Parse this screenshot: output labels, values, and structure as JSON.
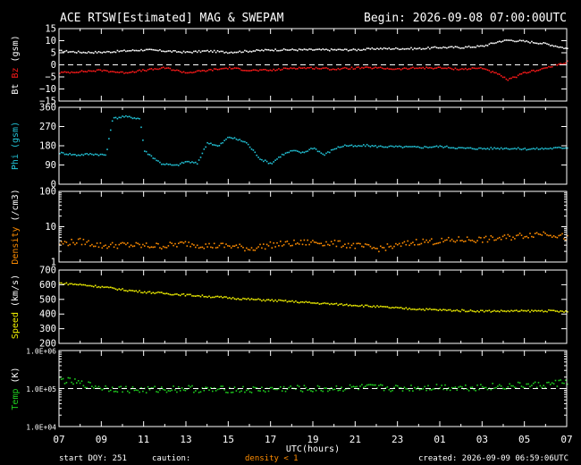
{
  "header": {
    "title": "ACE RTSW[Estimated] MAG & SWEPAM",
    "begin": "Begin: 2026-09-08 07:00:00UTC"
  },
  "footer": {
    "start_doy": "start DOY: 251",
    "caution": "caution:",
    "density_note": "density < 1",
    "created": "created: 2026-09-09 06:59:06UTC"
  },
  "colors": {
    "bt": "#ffffff",
    "bz": "#ff1a1a",
    "phi": "#22c4d8",
    "density": "#ff8c00",
    "speed": "#f0f000",
    "temp": "#1ecf1e",
    "frame": "#ffffff",
    "background": "#000000"
  },
  "chart_data": {
    "type": "scatter",
    "x": {
      "xlabel": "UTC(hours)",
      "tick_labels": [
        "07",
        "09",
        "11",
        "13",
        "15",
        "17",
        "19",
        "21",
        "23",
        "01",
        "03",
        "05",
        "07"
      ],
      "range_hours": [
        0,
        24
      ]
    },
    "panels": [
      {
        "id": "mag",
        "ylabel": [
          {
            "text": "Bt",
            "color": "#ffffff"
          },
          {
            "text": " Bz",
            "color": "#ff1a1a"
          },
          {
            "text": " (gsm)",
            "color": "#ffffff"
          }
        ],
        "ylim": [
          -15,
          15
        ],
        "scale": "linear",
        "ticks": [
          15,
          10,
          5,
          0,
          -5,
          -10,
          -15
        ],
        "tick_labels": [
          "15",
          "10",
          "5",
          "0",
          "−5",
          "−10",
          "−15"
        ],
        "dashed_line": 0,
        "series": [
          {
            "name": "Bt",
            "color": "#ffffff",
            "x": [
              0,
              1,
              2,
              3,
              4,
              5,
              6,
              7,
              8,
              9,
              10,
              11,
              12,
              13,
              14,
              15,
              16,
              17,
              18,
              19,
              20,
              20.8,
              21.2,
              22,
              23,
              24
            ],
            "y": [
              6,
              5.5,
              5.5,
              6,
              6.5,
              6,
              5.5,
              6,
              5.5,
              6,
              6.5,
              6.5,
              6.5,
              6.5,
              6.5,
              7,
              7,
              7,
              7.5,
              7.5,
              8,
              10,
              10.5,
              10,
              9,
              7
            ]
          },
          {
            "name": "Bz",
            "color": "#ff1a1a",
            "x": [
              0,
              1,
              2,
              3,
              4,
              5,
              6,
              7,
              8,
              9,
              10,
              11,
              12,
              13,
              14,
              15,
              16,
              17,
              18,
              19,
              20,
              20.8,
              21.2,
              22,
              23,
              24
            ],
            "y": [
              -3,
              -2.5,
              -2,
              -3,
              -2,
              -1,
              -3,
              -2,
              -1,
              -2,
              -2,
              -1,
              -1,
              -1.5,
              -1,
              -1,
              -1.5,
              -1,
              -1,
              -1.5,
              -1,
              -4,
              -6,
              -3,
              -1,
              1.5
            ]
          }
        ]
      },
      {
        "id": "phi",
        "ylabel": [
          {
            "text": "Phi (gsm)",
            "color": "#22c4d8"
          }
        ],
        "ylim": [
          0,
          360
        ],
        "scale": "linear",
        "ticks": [
          360,
          270,
          180,
          90,
          0
        ],
        "tick_labels": [
          "360",
          "270",
          "180",
          "90",
          "0"
        ],
        "series": [
          {
            "name": "Phi",
            "color": "#22c4d8",
            "x": [
              0,
              0.8,
              1.5,
              2.2,
              2.5,
              3,
              3.5,
              3.8,
              4,
              4.8,
              5.5,
              6,
              6.5,
              7,
              7.5,
              8,
              8.8,
              9.5,
              10,
              10.5,
              11,
              11.5,
              12,
              12.5,
              13,
              13.5,
              14,
              14.5,
              15,
              16,
              17,
              18,
              19,
              20,
              21,
              22,
              23,
              24
            ],
            "y": [
              150,
              140,
              145,
              140,
              310,
              320,
              315,
              310,
              160,
              100,
              90,
              110,
              100,
              200,
              180,
              225,
              200,
              120,
              100,
              140,
              160,
              150,
              175,
              140,
              170,
              185,
              180,
              185,
              180,
              178,
              176,
              180,
              172,
              170,
              172,
              168,
              170,
              175
            ]
          }
        ]
      },
      {
        "id": "density",
        "ylabel": [
          {
            "text": "Density",
            "color": "#ff8c00"
          },
          {
            "text": " (/cm3)",
            "color": "#ffffff"
          }
        ],
        "ylim": [
          1,
          100
        ],
        "scale": "log",
        "ticks": [
          100,
          10,
          1
        ],
        "tick_labels": [
          "100",
          "10",
          "1"
        ],
        "series": [
          {
            "name": "Density",
            "color": "#ff8c00",
            "x": [
              0,
              1,
              2,
              3,
              4,
              5,
              6,
              7,
              8,
              9,
              10,
              11,
              12,
              13,
              14,
              15,
              16,
              17,
              18,
              19,
              20,
              21,
              22,
              23,
              24
            ],
            "y": [
              3.5,
              4,
              3,
              3.2,
              3,
              3,
              3.5,
              3,
              3,
              2.5,
              3.2,
              3.5,
              3.8,
              3.5,
              3,
              2.5,
              3,
              4,
              4,
              4.5,
              4.5,
              5,
              6,
              7,
              5
            ]
          }
        ]
      },
      {
        "id": "speed",
        "ylabel": [
          {
            "text": "Speed",
            "color": "#f0f000"
          },
          {
            "text": " (km/s)",
            "color": "#ffffff"
          }
        ],
        "ylim": [
          200,
          700
        ],
        "scale": "linear",
        "ticks": [
          700,
          600,
          500,
          400,
          300,
          200
        ],
        "tick_labels": [
          "700",
          "600",
          "500",
          "400",
          "300",
          "200"
        ],
        "series": [
          {
            "name": "Speed",
            "color": "#f0f000",
            "x": [
              0,
              1,
              2,
              3,
              4,
              5,
              6,
              7,
              8,
              9,
              10,
              11,
              12,
              13,
              14,
              15,
              16,
              17,
              18,
              19,
              20,
              21,
              22,
              23,
              24
            ],
            "y": [
              615,
              605,
              590,
              570,
              555,
              545,
              535,
              525,
              515,
              505,
              498,
              490,
              480,
              472,
              465,
              455,
              445,
              438,
              432,
              428,
              425,
              425,
              425,
              427,
              420
            ]
          }
        ]
      },
      {
        "id": "temp",
        "ylabel": [
          {
            "text": "Temp",
            "color": "#1ecf1e"
          },
          {
            "text": " (K)",
            "color": "#ffffff"
          }
        ],
        "ylim": [
          10000,
          1000000
        ],
        "scale": "log",
        "ticks": [
          1000000,
          100000,
          10000
        ],
        "tick_labels": [
          "1.0E+06",
          "1.0E+05",
          "1.0E+04"
        ],
        "dashed_line": 100000,
        "series": [
          {
            "name": "Temp",
            "color": "#1ecf1e",
            "x": [
              0,
              1,
              2,
              3,
              4,
              5,
              6,
              7,
              8,
              9,
              10,
              11,
              12,
              13,
              14,
              15,
              16,
              17,
              18,
              19,
              20,
              21,
              22,
              23,
              24
            ],
            "y": [
              180000,
              140000,
              110000,
              100000,
              95000,
              100000,
              105000,
              95000,
              100000,
              95000,
              100000,
              105000,
              100000,
              105000,
              110000,
              110000,
              105000,
              110000,
              115000,
              110000,
              115000,
              120000,
              125000,
              130000,
              160000
            ]
          }
        ]
      }
    ]
  }
}
